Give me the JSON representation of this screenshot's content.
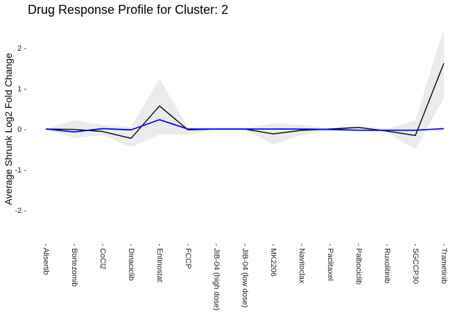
{
  "chart_data": {
    "type": "line",
    "title": "Drug Response Profile for Cluster:  2",
    "xlabel": "",
    "ylabel": "Average Shrunk Log2 Fold Change",
    "ylim": [
      -2.6,
      2.6
    ],
    "yticks": [
      -2,
      -1,
      0,
      1,
      2
    ],
    "ytick_labels": [
      "-2 -",
      "-1 -",
      "0 -",
      "1 -",
      "2 -"
    ],
    "grid": false,
    "categories": [
      "Alisertib",
      "Bortezomib",
      "CoCl2",
      "Dinaciclib",
      "Entinostat",
      "FCCP",
      "JIB-04 (high dose)",
      "JIB-04 (low dose)",
      "MK2206",
      "Navitoclax",
      "Paclitaxel",
      "Palbociclib",
      "Ruxolitinib",
      "SGCCP30",
      "Trametinib"
    ],
    "category_tick_prefix": "- ",
    "series": [
      {
        "color": "#000000",
        "values": [
          0.0,
          -0.01,
          -0.06,
          -0.23,
          0.57,
          -0.02,
          0.0,
          0.0,
          -0.12,
          -0.03,
          0.0,
          0.04,
          -0.05,
          -0.16,
          1.62
        ]
      },
      {
        "color": "#0000ff",
        "values": [
          0.0,
          -0.07,
          0.01,
          -0.02,
          0.23,
          0.0,
          0.0,
          0.0,
          0.0,
          0.0,
          -0.01,
          -0.03,
          -0.03,
          -0.03,
          0.01
        ]
      }
    ],
    "band": {
      "color": "#ebebeb",
      "upper": [
        0.0,
        0.22,
        0.1,
        0.05,
        1.24,
        0.04,
        0.01,
        0.01,
        0.14,
        0.1,
        0.02,
        0.08,
        0.01,
        0.21,
        2.48
      ],
      "lower": [
        0.0,
        -0.22,
        -0.15,
        -0.45,
        -0.13,
        -0.14,
        -0.01,
        -0.01,
        -0.38,
        -0.15,
        -0.05,
        -0.05,
        -0.08,
        -0.5,
        0.76
      ]
    }
  }
}
